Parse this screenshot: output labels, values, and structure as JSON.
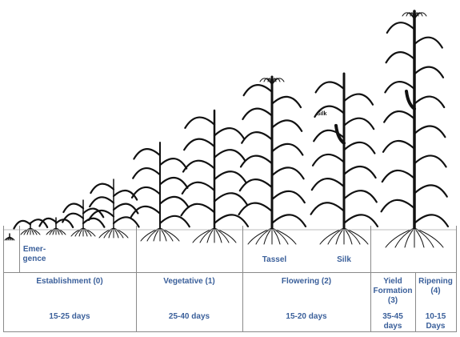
{
  "plant_labels": {
    "emergence": "Emer-\ngence",
    "tassel": "Tassel",
    "silk_bottom": "Silk",
    "silk_top": "Silk"
  },
  "stages": [
    {
      "name": "Establishment (0)",
      "duration": "15-25 days"
    },
    {
      "name": "Vegetative (1)",
      "duration": "25-40 days"
    },
    {
      "name": "Flowering (2)",
      "duration": "15-20 days"
    },
    {
      "name": "Yield\nFormation (3)",
      "duration": "35-45\ndays"
    },
    {
      "name": "Ripening\n(4)",
      "duration": "10-15\nDays"
    }
  ],
  "colors": {
    "label": "#3a5f9a",
    "grid": "#8a8a8a",
    "plant": "#111111"
  }
}
